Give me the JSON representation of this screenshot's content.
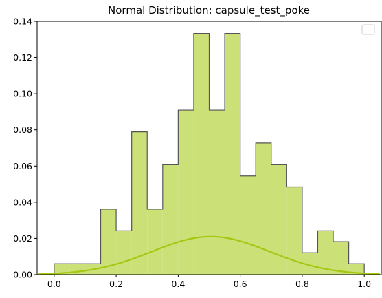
{
  "chart_data": {
    "type": "bar",
    "title": "Normal Distribution: capsule_test_poke",
    "xlabel": "",
    "ylabel": "",
    "xlim": [
      -0.055,
      1.055
    ],
    "ylim": [
      0,
      0.14
    ],
    "xticks": [
      "0.0",
      "0.2",
      "0.4",
      "0.6",
      "0.8",
      "1.0"
    ],
    "yticks": [
      "0.00",
      "0.02",
      "0.04",
      "0.06",
      "0.08",
      "0.10",
      "0.12",
      "0.14"
    ],
    "grid": false,
    "legend": "top-right",
    "histogram": {
      "bin_edges": [
        0.0,
        0.05,
        0.1,
        0.15,
        0.2,
        0.25,
        0.3,
        0.35,
        0.4,
        0.45,
        0.5,
        0.55,
        0.6,
        0.65,
        0.7,
        0.75,
        0.8,
        0.85,
        0.9,
        0.95,
        1.0
      ],
      "values": [
        0.006,
        0.006,
        0.006,
        0.0362,
        0.0242,
        0.0789,
        0.0362,
        0.0607,
        0.0909,
        0.1333,
        0.0909,
        0.1333,
        0.0545,
        0.0727,
        0.0607,
        0.0485,
        0.0121,
        0.0242,
        0.0182,
        0.006
      ],
      "fill_color": "#cbe077",
      "edge_color": "#555555"
    },
    "curve": {
      "type": "normal-pdf",
      "mean": 0.505,
      "peak": 0.021,
      "sigma": 0.19,
      "x_range": [
        -0.05,
        1.05
      ],
      "color": "#a4c811"
    }
  }
}
